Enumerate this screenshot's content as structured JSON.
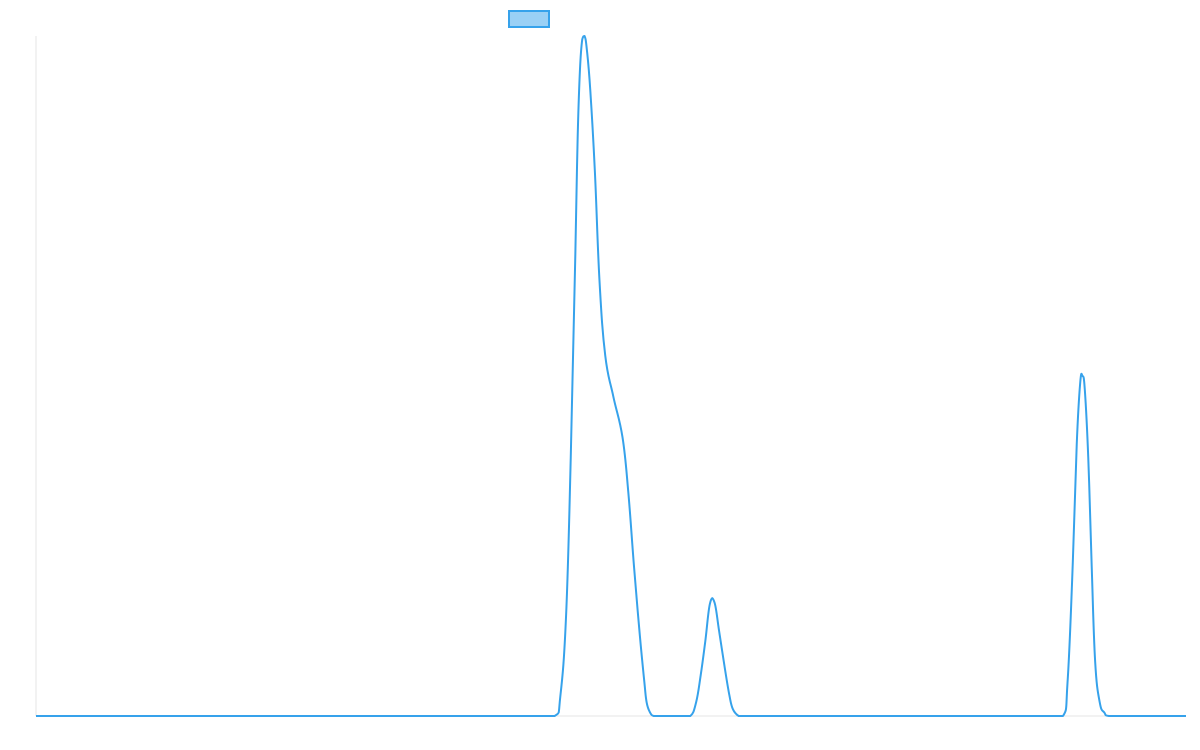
{
  "chart_data": {
    "type": "line",
    "title": "",
    "xlabel": "",
    "ylabel": "",
    "legend": {
      "position": "top",
      "entries": [
        {
          "name": "",
          "color": "#36a2eb"
        }
      ]
    },
    "grid": false,
    "xlim": [
      0,
      100
    ],
    "ylim": [
      0,
      100
    ],
    "series": [
      {
        "name": "",
        "color": "#36a2eb",
        "fill": "#9ad0f5",
        "x": [
          0,
          45.1,
          45.6,
          46.1,
          46.5,
          46.9,
          47.1,
          47.3,
          47.5,
          47.7,
          47.9,
          48.2,
          48.6,
          49.0,
          49.5,
          50.2,
          51.0,
          51.5,
          52.0,
          52.5,
          52.9,
          53.1,
          53.4,
          53.7,
          54.1,
          54.3,
          55.3,
          56.0,
          56.9,
          57.4,
          57.8,
          58.2,
          58.6,
          59.0,
          59.4,
          59.9,
          60.3,
          60.6,
          61.1,
          61.5,
          62.0,
          62.5,
          63.3,
          63.9,
          67.0,
          89.3,
          89.7,
          90.1,
          90.5,
          90.8,
          91.0,
          91.2,
          91.5,
          91.8,
          92.1,
          92.5,
          92.9,
          93.3,
          100
        ],
        "y": [
          0,
          0,
          3.0,
          15.0,
          38.0,
          68.0,
          85.0,
          95.0,
          99.5,
          100,
          98.0,
          92.0,
          80.0,
          64.0,
          53.0,
          47.0,
          41.0,
          33.0,
          22.0,
          12.0,
          5.0,
          2.0,
          0.5,
          0,
          0,
          0,
          0,
          0,
          0,
          2.0,
          6.0,
          11.0,
          16.5,
          16.7,
          12.5,
          7.0,
          3.0,
          1.0,
          0,
          0,
          0,
          0,
          0,
          0,
          0,
          0,
          5.0,
          20.0,
          40.0,
          49.0,
          50.0,
          48.0,
          38.0,
          22.0,
          8.0,
          2.0,
          0.5,
          0,
          0
        ]
      }
    ]
  }
}
